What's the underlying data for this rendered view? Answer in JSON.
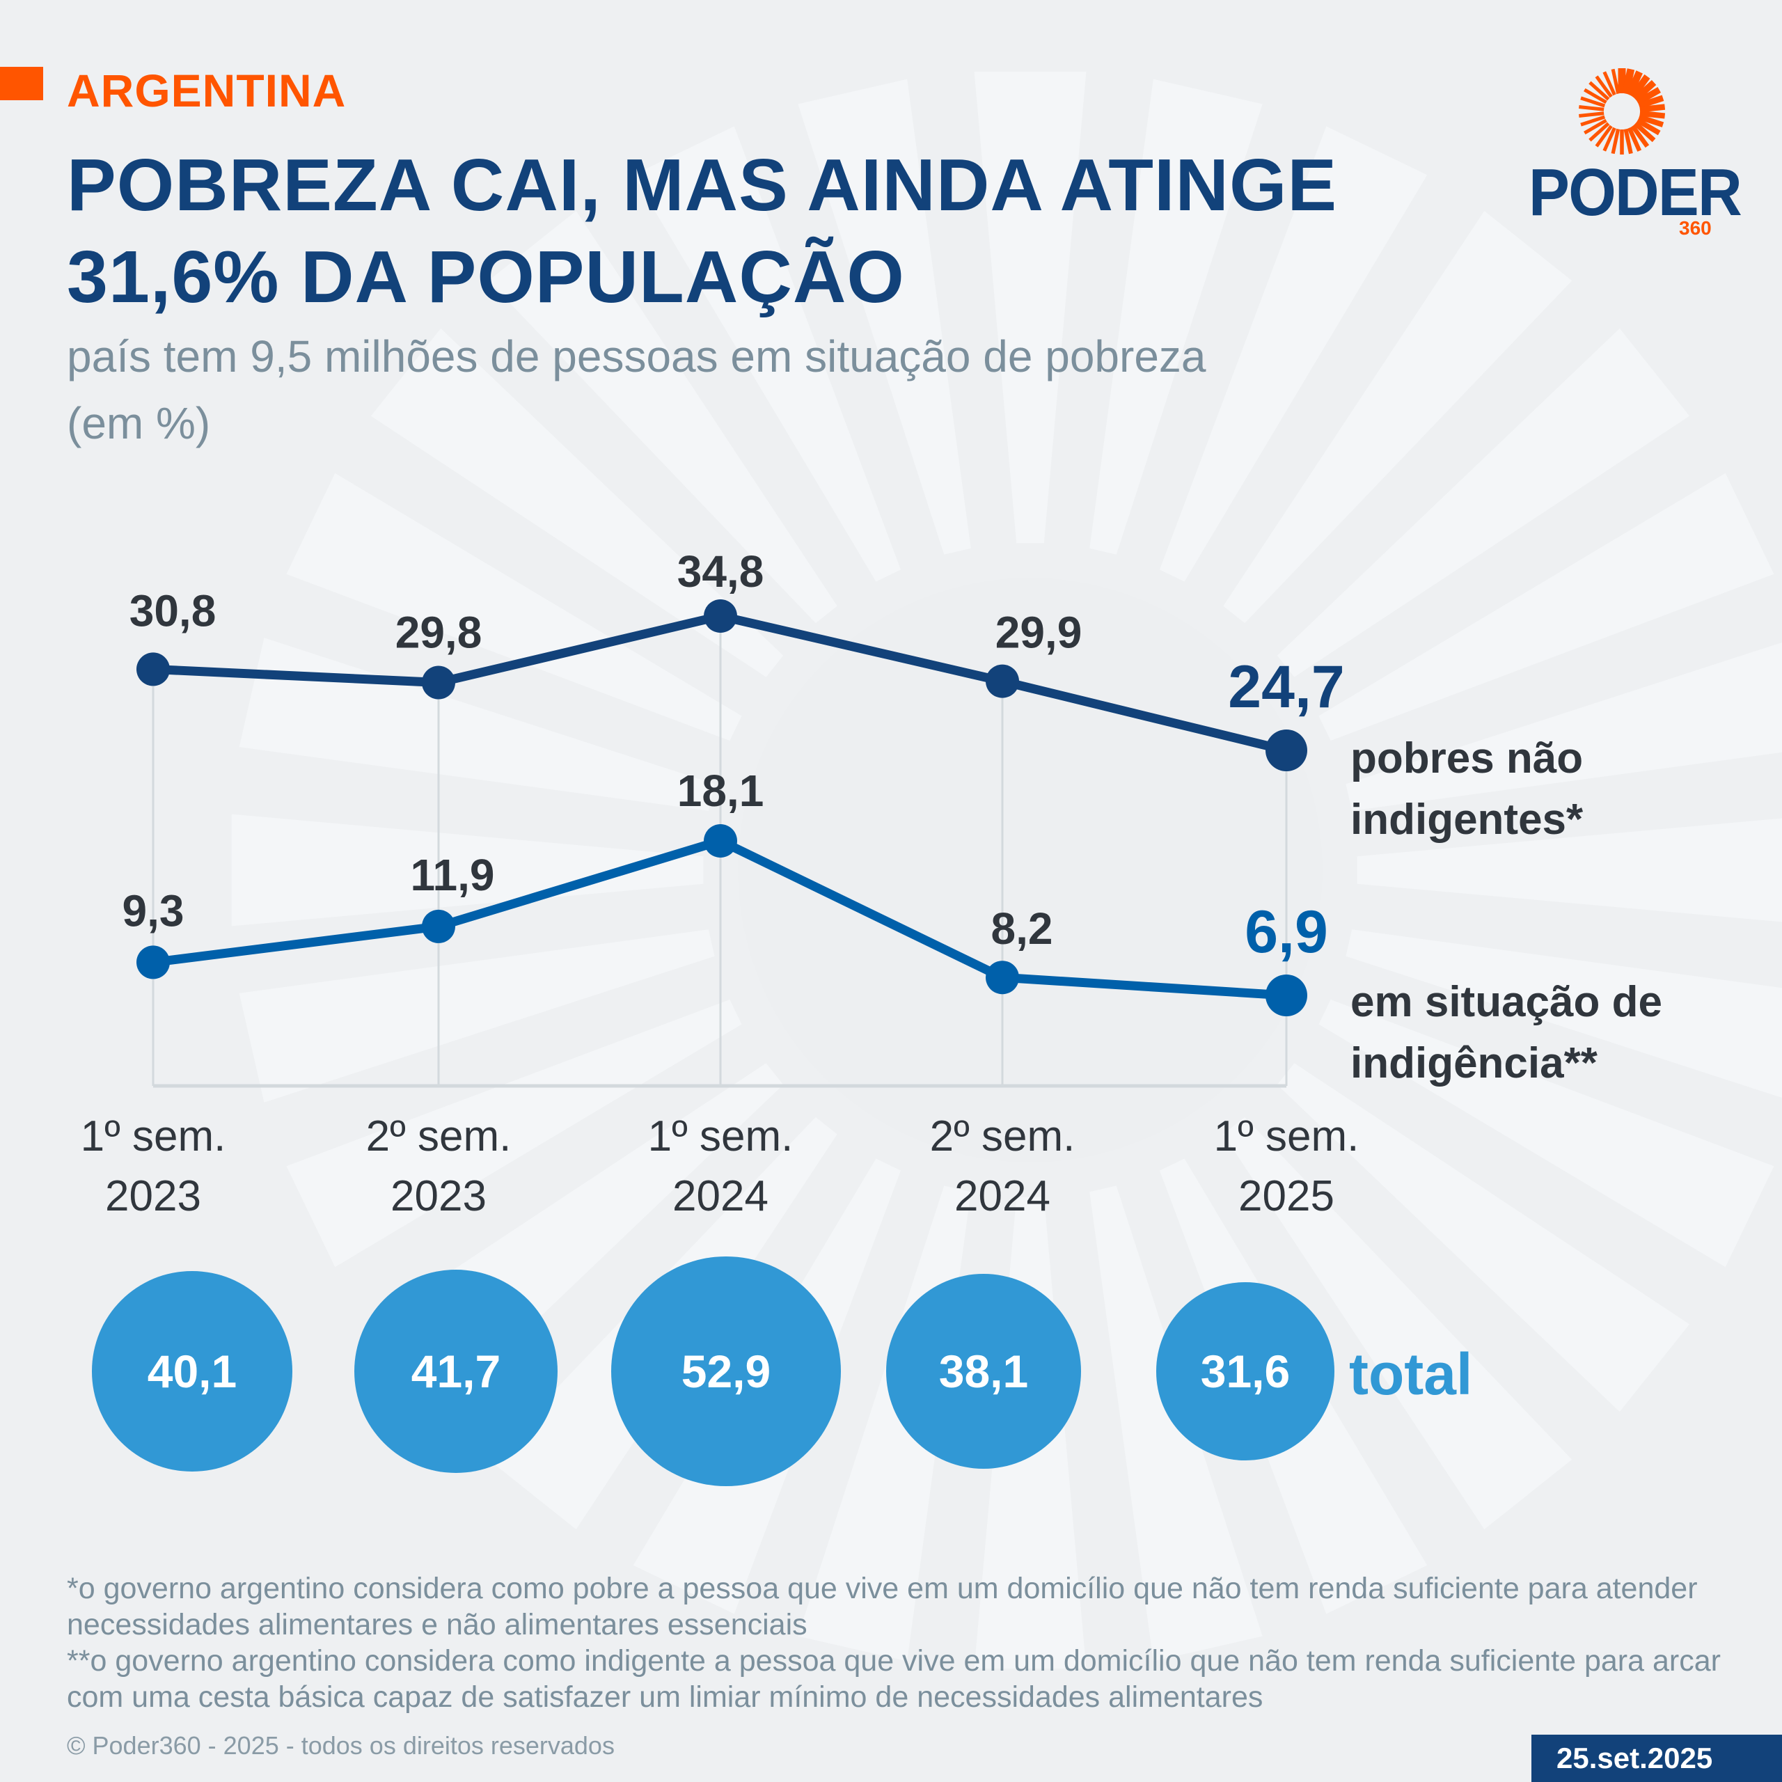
{
  "header": {
    "kicker": "ARGENTINA",
    "title": "POBREZA CAI, MAS AINDA ATINGE 31,6% DA POPULAÇÃO",
    "subtitle": "país tem 9,5 milhões de pessoas em situação de pobreza (em %)"
  },
  "logo": {
    "wordmark": "PODER",
    "suffix": "360",
    "icon": "sunburst-icon"
  },
  "colors": {
    "accent_orange": "#ff5500",
    "navy": "#12427a",
    "blue": "#0060aa",
    "bubble_blue": "#3198d5",
    "text_dark": "#30363d",
    "text_gray": "#7b8f9c",
    "background": "#eef0f2"
  },
  "chart_data": {
    "type": "line",
    "title": "POBREZA CAI, MAS AINDA ATINGE 31,6% DA POPULAÇÃO",
    "subtitle": "país tem 9,5 milhões de pessoas em situação de pobreza (em %)",
    "xlabel": "",
    "ylabel": "%",
    "grid": "vertical",
    "legend_position": "right",
    "categories": [
      "1º sem. 2023",
      "2º sem. 2023",
      "1º sem. 2024",
      "2º sem. 2024",
      "1º sem. 2025"
    ],
    "category_lines": [
      [
        "1º sem.",
        "2023"
      ],
      [
        "2º sem.",
        "2023"
      ],
      [
        "1º sem.",
        "2024"
      ],
      [
        "2º sem.",
        "2024"
      ],
      [
        "1º sem.",
        "2025"
      ]
    ],
    "series": [
      {
        "name": "pobres não indigentes*",
        "legend_lines": [
          "pobres não",
          "indigentes*"
        ],
        "values": [
          30.8,
          29.8,
          34.8,
          29.9,
          24.7
        ],
        "labels": [
          "30,8",
          "29,8",
          "34,8",
          "29,9",
          "24,7"
        ],
        "color": "#12427a"
      },
      {
        "name": "em situação de indigência**",
        "legend_lines": [
          "em situação de",
          "indigência**"
        ],
        "values": [
          9.3,
          11.9,
          18.1,
          8.2,
          6.9
        ],
        "labels": [
          "9,3",
          "11,9",
          "18,1",
          "8,2",
          "6,9"
        ],
        "color": "#0060aa"
      }
    ],
    "total": {
      "name": "total",
      "values": [
        40.1,
        41.7,
        52.9,
        38.1,
        31.6
      ],
      "labels": [
        "40,1",
        "41,7",
        "52,9",
        "38,1",
        "31,6"
      ],
      "color": "#3198d5"
    }
  },
  "footnotes": {
    "note1": "*o governo argentino considera como pobre a pessoa que vive em um domicílio que não tem renda suficiente para atender necessidades alimentares e não alimentares essenciais",
    "note2": "**o governo argentino considera como indigente a pessoa que vive em um domicílio que não tem renda suficiente para arcar com uma cesta básica capaz de satisfazer um limiar mínimo de necessidades alimentares"
  },
  "footer": {
    "copyright": "© Poder360 - 2025 - todos os direitos reservados",
    "date": "25.set.2025"
  }
}
